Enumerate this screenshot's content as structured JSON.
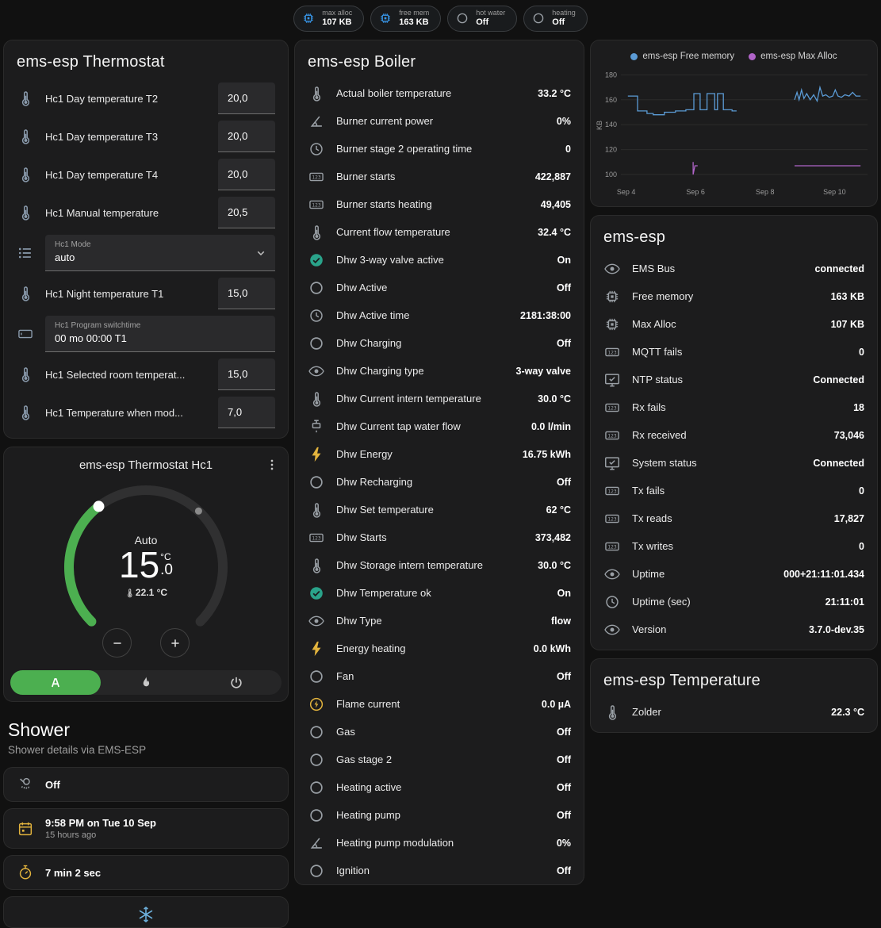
{
  "colors": {
    "page_bg": "#111111",
    "card_bg": "#1c1c1d",
    "accent_green": "#4caf50",
    "chart_blue": "#5b9bd5",
    "chart_purple": "#b064c8",
    "amber": "#e2b33d",
    "chip_blue": "#3898ec",
    "on_teal": "#2aa38a",
    "snow_blue": "#6fb3e0"
  },
  "topbar": {
    "badges": [
      {
        "icon": "chip-icon",
        "icon_color": "#3898ec",
        "label": "max alloc",
        "value": "107 KB"
      },
      {
        "icon": "chip-icon",
        "icon_color": "#3898ec",
        "label": "free mem",
        "value": "163 KB"
      },
      {
        "icon": "circle-icon",
        "icon_color": "#9aa0a6",
        "label": "hot water",
        "value": "Off"
      },
      {
        "icon": "circle-icon",
        "icon_color": "#9aa0a6",
        "label": "heating",
        "value": "Off"
      }
    ]
  },
  "thermostat_card": {
    "title": "ems-esp Thermostat",
    "rows": [
      {
        "type": "number",
        "icon": "thermometer-icon",
        "label": "Hc1 Day temperature T2",
        "value": "20,0"
      },
      {
        "type": "number",
        "icon": "thermometer-icon",
        "label": "Hc1 Day temperature T3",
        "value": "20,0"
      },
      {
        "type": "number",
        "icon": "thermometer-icon",
        "label": "Hc1 Day temperature T4",
        "value": "20,0"
      },
      {
        "type": "number",
        "icon": "thermometer-icon",
        "label": "Hc1 Manual temperature",
        "value": "20,5"
      },
      {
        "type": "select",
        "icon": "list-icon",
        "field_label": "Hc1 Mode",
        "value": "auto"
      },
      {
        "type": "number",
        "icon": "thermometer-icon",
        "label": "Hc1 Night temperature T1",
        "value": "15,0"
      },
      {
        "type": "text",
        "icon": "textbox-icon",
        "field_label": "Hc1 Program switchtime",
        "value": "00 mo 00:00 T1"
      },
      {
        "type": "number",
        "icon": "thermometer-icon",
        "label": "Hc1 Selected room temperat...",
        "value": "15,0"
      },
      {
        "type": "number",
        "icon": "thermometer-icon",
        "label": "Hc1 Temperature when mod...",
        "value": "7,0"
      }
    ]
  },
  "hc1_card": {
    "title": "ems-esp Thermostat Hc1",
    "mode_label": "Auto",
    "target_int": "15",
    "target_frac": ".0",
    "unit": "°C",
    "current": "22.1 °C",
    "modes": [
      {
        "icon": "auto-icon",
        "name": "auto",
        "active": true
      },
      {
        "icon": "flame-icon",
        "name": "heat",
        "active": false
      },
      {
        "icon": "power-icon",
        "name": "off",
        "active": false
      }
    ]
  },
  "shower": {
    "title": "Shower",
    "subtitle": "Shower details via EMS-ESP",
    "cards": [
      {
        "icon": "shower-icon",
        "icon_color": "#9aa0a6",
        "line1": "Off",
        "line2": ""
      },
      {
        "icon": "calendar-icon",
        "icon_color": "#e2b33d",
        "line1": "9:58 PM on Tue 10 Sep",
        "line2": "15 hours ago"
      },
      {
        "icon": "timer-icon",
        "icon_color": "#e2b33d",
        "line1": "7 min 2 sec",
        "line2": ""
      }
    ],
    "partial_icon": "snowflake-icon"
  },
  "boiler_card": {
    "title": "ems-esp Boiler",
    "rows": [
      {
        "icon": "thermometer-icon",
        "label": "Actual boiler temperature",
        "value": "33.2 °C"
      },
      {
        "icon": "angle-icon",
        "label": "Burner current power",
        "value": "0%"
      },
      {
        "icon": "clock-icon",
        "label": "Burner stage 2 operating time",
        "value": "0"
      },
      {
        "icon": "counter-icon",
        "label": "Burner starts",
        "value": "422,887"
      },
      {
        "icon": "counter-icon",
        "label": "Burner starts heating",
        "value": "49,405"
      },
      {
        "icon": "thermometer-icon",
        "label": "Current flow temperature",
        "value": "32.4 °C"
      },
      {
        "icon": "check-circle-icon",
        "icon_color": "#2aa38a",
        "label": "Dhw 3-way valve active",
        "value": "On"
      },
      {
        "icon": "circle-icon",
        "label": "Dhw Active",
        "value": "Off"
      },
      {
        "icon": "clock-icon",
        "label": "Dhw Active time",
        "value": "2181:38:00"
      },
      {
        "icon": "circle-icon",
        "label": "Dhw Charging",
        "value": "Off"
      },
      {
        "icon": "eye-icon",
        "label": "Dhw Charging type",
        "value": "3-way valve"
      },
      {
        "icon": "thermometer-icon",
        "label": "Dhw Current intern temperature",
        "value": "30.0 °C"
      },
      {
        "icon": "pump-icon",
        "label": "Dhw Current tap water flow",
        "value": "0.0 l/min"
      },
      {
        "icon": "lightning-icon",
        "icon_color": "#e2b33d",
        "label": "Dhw Energy",
        "value": "16.75 kWh"
      },
      {
        "icon": "circle-icon",
        "label": "Dhw Recharging",
        "value": "Off"
      },
      {
        "icon": "thermometer-icon",
        "label": "Dhw Set temperature",
        "value": "62 °C"
      },
      {
        "icon": "counter-icon",
        "label": "Dhw Starts",
        "value": "373,482"
      },
      {
        "icon": "thermometer-icon",
        "label": "Dhw Storage intern temperature",
        "value": "30.0 °C"
      },
      {
        "icon": "check-circle-icon",
        "icon_color": "#2aa38a",
        "label": "Dhw Temperature ok",
        "value": "On"
      },
      {
        "icon": "eye-icon",
        "label": "Dhw Type",
        "value": "flow"
      },
      {
        "icon": "lightning-icon",
        "icon_color": "#e2b33d",
        "label": "Energy heating",
        "value": "0.0 kWh"
      },
      {
        "icon": "circle-icon",
        "label": "Fan",
        "value": "Off"
      },
      {
        "icon": "flash-circle-icon",
        "icon_color": "#e2b33d",
        "label": "Flame current",
        "value": "0.0 µA"
      },
      {
        "icon": "circle-icon",
        "label": "Gas",
        "value": "Off"
      },
      {
        "icon": "circle-icon",
        "label": "Gas stage 2",
        "value": "Off"
      },
      {
        "icon": "circle-icon",
        "label": "Heating active",
        "value": "Off"
      },
      {
        "icon": "circle-icon",
        "label": "Heating pump",
        "value": "Off"
      },
      {
        "icon": "angle-icon",
        "label": "Heating pump modulation",
        "value": "0%"
      },
      {
        "icon": "circle-icon",
        "label": "Ignition",
        "value": "Off"
      }
    ]
  },
  "chart_card": {
    "legend": [
      {
        "label": "ems-esp Free memory",
        "color": "#5b9bd5"
      },
      {
        "label": "ems-esp Max Alloc",
        "color": "#b064c8"
      }
    ]
  },
  "chart_data": {
    "type": "line",
    "title": "",
    "xlabel": "",
    "ylabel": "KB",
    "xlim": [
      3.85,
      10.95
    ],
    "ylim": [
      93,
      186
    ],
    "yticks": [
      100,
      120,
      140,
      160,
      180
    ],
    "xticks": [
      {
        "x": 4,
        "label": "Sep 4"
      },
      {
        "x": 6,
        "label": "Sep 6"
      },
      {
        "x": 8,
        "label": "Sep 8"
      },
      {
        "x": 10,
        "label": "Sep 10"
      }
    ],
    "grid": true,
    "legend_position": "top",
    "series": [
      {
        "name": "ems-esp Free memory",
        "color": "#5b9bd5",
        "points": [
          [
            4.05,
            163
          ],
          [
            4.33,
            163
          ],
          [
            4.33,
            151
          ],
          [
            4.6,
            151
          ],
          [
            4.6,
            149
          ],
          [
            4.78,
            149
          ],
          [
            4.78,
            148
          ],
          [
            5.1,
            148
          ],
          [
            5.1,
            150
          ],
          [
            5.42,
            150
          ],
          [
            5.42,
            151
          ],
          [
            5.72,
            151
          ],
          [
            5.72,
            152
          ],
          [
            5.95,
            152
          ],
          [
            5.95,
            165
          ],
          [
            6.13,
            165
          ],
          [
            6.13,
            152
          ],
          [
            6.33,
            152
          ],
          [
            6.33,
            165
          ],
          [
            6.55,
            165
          ],
          [
            6.55,
            152
          ],
          [
            6.63,
            152
          ],
          [
            6.63,
            165
          ],
          [
            6.8,
            165
          ],
          [
            6.8,
            152
          ],
          [
            7.05,
            152
          ],
          [
            7.05,
            151
          ],
          [
            7.18,
            151
          ],
          null,
          [
            8.85,
            160
          ],
          [
            8.92,
            166
          ],
          [
            8.98,
            160
          ],
          [
            9.05,
            168
          ],
          [
            9.12,
            161
          ],
          [
            9.2,
            165
          ],
          [
            9.3,
            160
          ],
          [
            9.4,
            164
          ],
          [
            9.5,
            159
          ],
          [
            9.58,
            170
          ],
          [
            9.66,
            163
          ],
          [
            9.75,
            164
          ],
          [
            9.85,
            162
          ],
          [
            9.95,
            163
          ],
          [
            10.02,
            168
          ],
          [
            10.1,
            163
          ],
          [
            10.2,
            162
          ],
          [
            10.3,
            164
          ],
          [
            10.42,
            163
          ],
          [
            10.52,
            166
          ],
          [
            10.62,
            163
          ],
          [
            10.75,
            163
          ]
        ]
      },
      {
        "name": "ems-esp Max Alloc",
        "color": "#b064c8",
        "points": [
          [
            5.93,
            110
          ],
          [
            5.93,
            100
          ],
          [
            5.98,
            107
          ],
          [
            6.06,
            107
          ],
          null,
          [
            8.85,
            107
          ],
          [
            10.75,
            107
          ]
        ]
      }
    ]
  },
  "emsesp_card": {
    "title": "ems-esp",
    "rows": [
      {
        "icon": "eye-icon",
        "label": "EMS Bus",
        "value": "connected"
      },
      {
        "icon": "chip-icon",
        "label": "Free memory",
        "value": "163 KB"
      },
      {
        "icon": "chip-icon",
        "label": "Max Alloc",
        "value": "107 KB"
      },
      {
        "icon": "counter-icon",
        "label": "MQTT fails",
        "value": "0"
      },
      {
        "icon": "monitor-icon",
        "label": "NTP status",
        "value": "Connected"
      },
      {
        "icon": "counter-icon",
        "label": "Rx fails",
        "value": "18"
      },
      {
        "icon": "counter-icon",
        "label": "Rx received",
        "value": "73,046"
      },
      {
        "icon": "monitor-icon",
        "label": "System status",
        "value": "Connected"
      },
      {
        "icon": "counter-icon",
        "label": "Tx fails",
        "value": "0"
      },
      {
        "icon": "counter-icon",
        "label": "Tx reads",
        "value": "17,827"
      },
      {
        "icon": "counter-icon",
        "label": "Tx writes",
        "value": "0"
      },
      {
        "icon": "eye-icon",
        "label": "Uptime",
        "value": "000+21:11:01.434"
      },
      {
        "icon": "clock-icon",
        "label": "Uptime (sec)",
        "value": "21:11:01"
      },
      {
        "icon": "eye-icon",
        "label": "Version",
        "value": "3.7.0-dev.35"
      }
    ]
  },
  "temperature_card": {
    "title": "ems-esp Temperature",
    "rows": [
      {
        "icon": "thermometer-icon",
        "label": "Zolder",
        "value": "22.3 °C"
      }
    ]
  }
}
